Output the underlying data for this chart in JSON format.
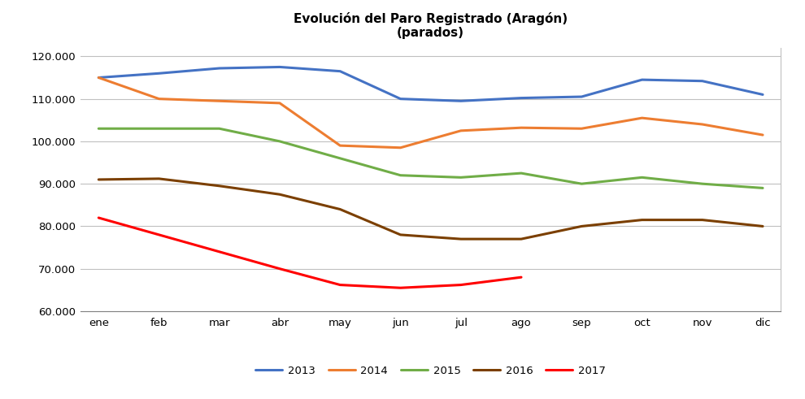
{
  "title_line1": "Evolución del Paro Registrado (Aragón)",
  "title_line2": "(parados)",
  "months": [
    "ene",
    "feb",
    "mar",
    "abr",
    "may",
    "jun",
    "jul",
    "ago",
    "sep",
    "oct",
    "nov",
    "dic"
  ],
  "series": {
    "2013": {
      "color": "#4472C4",
      "data": [
        115000,
        116000,
        117200,
        117500,
        116500,
        110000,
        109500,
        110200,
        110500,
        114500,
        114200,
        111000
      ]
    },
    "2014": {
      "color": "#ED7D31",
      "data": [
        115000,
        110000,
        109500,
        109000,
        99000,
        98500,
        102500,
        103200,
        103000,
        105500,
        104000,
        101500
      ]
    },
    "2015": {
      "color": "#70AD47",
      "data": [
        103000,
        103000,
        103000,
        100000,
        96000,
        92000,
        91500,
        92500,
        90000,
        91500,
        90000,
        89000
      ]
    },
    "2016": {
      "color": "#7B3F00",
      "data": [
        91000,
        91200,
        89500,
        87500,
        84000,
        78000,
        77000,
        77000,
        80000,
        81500,
        81500,
        80000
      ]
    },
    "2017": {
      "color": "#FF0000",
      "data": [
        82000,
        78000,
        74000,
        70000,
        66200,
        65500,
        66200,
        68000,
        null,
        null,
        null,
        null
      ]
    }
  },
  "ylim": [
    60000,
    122000
  ],
  "yticks": [
    60000,
    70000,
    80000,
    90000,
    100000,
    110000,
    120000
  ],
  "background_color": "#FFFFFF",
  "plot_bg_color": "#FFFFFF",
  "grid_color": "#C0C0C0",
  "legend_order": [
    "2013",
    "2014",
    "2015",
    "2016",
    "2017"
  ]
}
